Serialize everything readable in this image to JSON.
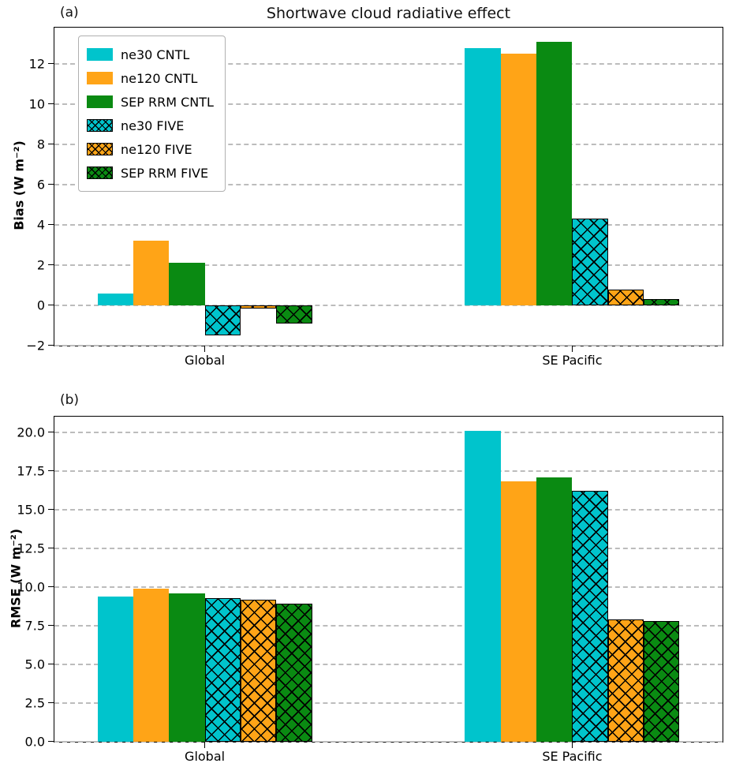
{
  "chart_data": [
    {
      "type": "bar",
      "panel_label": "(a)",
      "title": "Shortwave cloud radiative effect",
      "ylabel": "Bias (W m⁻²)",
      "categories": [
        "Global",
        "SE Pacific"
      ],
      "series": [
        {
          "name": "ne30 CNTL",
          "color": "#00c4cc",
          "hatch": false,
          "values": [
            0.6,
            12.8
          ]
        },
        {
          "name": "ne120 CNTL",
          "color": "#ffa417",
          "hatch": false,
          "values": [
            3.2,
            12.5
          ]
        },
        {
          "name": "SEP RRM CNTL",
          "color": "#0a8a12",
          "hatch": false,
          "values": [
            2.1,
            13.1
          ]
        },
        {
          "name": "ne30 FIVE",
          "color": "#00c4cc",
          "hatch": true,
          "values": [
            -1.5,
            4.3
          ]
        },
        {
          "name": "ne120 FIVE",
          "color": "#ffa417",
          "hatch": true,
          "values": [
            -0.15,
            0.8
          ]
        },
        {
          "name": "SEP RRM FIVE",
          "color": "#0a8a12",
          "hatch": true,
          "values": [
            -0.9,
            0.3
          ]
        }
      ],
      "ylim": [
        -2,
        13.8
      ],
      "yticks": [
        -2,
        0,
        2,
        4,
        6,
        8,
        10,
        12
      ],
      "ytick_labels": [
        "−2",
        "0",
        "2",
        "4",
        "6",
        "8",
        "10",
        "12"
      ],
      "grid": true,
      "legend_position": "upper left",
      "legend_visible": true
    },
    {
      "type": "bar",
      "panel_label": "(b)",
      "title": "",
      "ylabel": "RMSE (W m⁻²)",
      "categories": [
        "Global",
        "SE Pacific"
      ],
      "series": [
        {
          "name": "ne30 CNTL",
          "color": "#00c4cc",
          "hatch": false,
          "values": [
            9.4,
            20.1
          ]
        },
        {
          "name": "ne120 CNTL",
          "color": "#ffa417",
          "hatch": false,
          "values": [
            9.9,
            16.8
          ]
        },
        {
          "name": "SEP RRM CNTL",
          "color": "#0a8a12",
          "hatch": false,
          "values": [
            9.6,
            17.1
          ]
        },
        {
          "name": "ne30 FIVE",
          "color": "#00c4cc",
          "hatch": true,
          "values": [
            9.3,
            16.2
          ]
        },
        {
          "name": "ne120 FIVE",
          "color": "#ffa417",
          "hatch": true,
          "values": [
            9.2,
            7.9
          ]
        },
        {
          "name": "SEP RRM FIVE",
          "color": "#0a8a12",
          "hatch": true,
          "values": [
            8.9,
            7.8
          ]
        }
      ],
      "ylim": [
        0,
        21
      ],
      "yticks": [
        0,
        2.5,
        5,
        7.5,
        10,
        12.5,
        15,
        17.5,
        20
      ],
      "ytick_labels": [
        "0.0",
        "2.5",
        "5.0",
        "7.5",
        "10.0",
        "12.5",
        "15.0",
        "17.5",
        "20.0"
      ],
      "grid": true,
      "legend_visible": false
    }
  ]
}
